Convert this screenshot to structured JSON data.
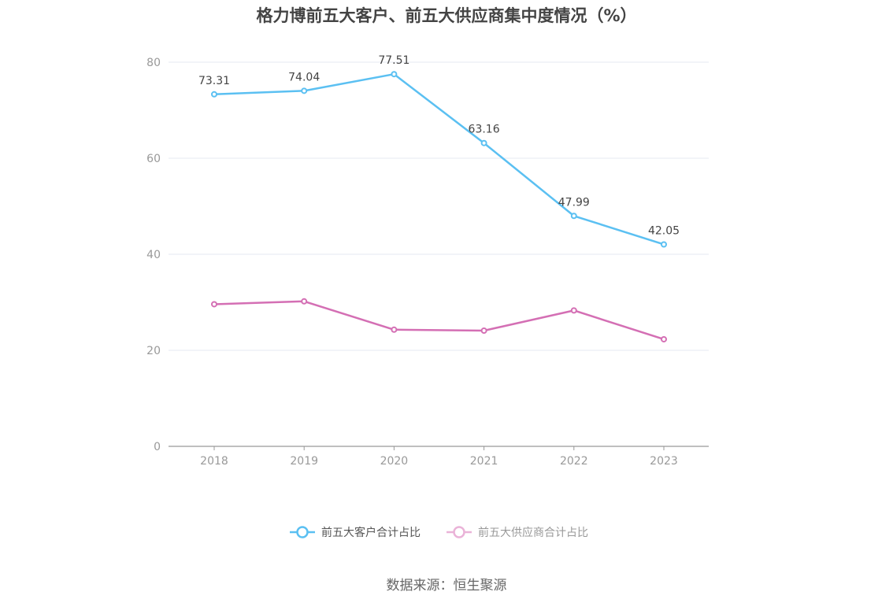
{
  "chart_data": {
    "type": "line",
    "title": "格力博前五大客户、前五大供应商集中度情况（%）",
    "categories": [
      "2018",
      "2019",
      "2020",
      "2021",
      "2022",
      "2023"
    ],
    "series": [
      {
        "name": "前五大客户合计占比",
        "values": [
          73.31,
          74.04,
          77.51,
          63.16,
          47.99,
          42.05
        ],
        "color": "#5bc0f2",
        "show_labels": true
      },
      {
        "name": "前五大供应商合计占比",
        "values": [
          29.6,
          30.2,
          24.3,
          24.1,
          28.3,
          22.3
        ],
        "color": "#d46fb4",
        "show_labels": false
      }
    ],
    "yticks": [
      0,
      20,
      40,
      60,
      80
    ],
    "ylim": [
      0,
      80
    ],
    "grid": true,
    "legend": "bottom-center",
    "legend_colors": [
      "#5bc0f2",
      "#eab3d8"
    ],
    "legend_text_colors": [
      "#555555",
      "#999999"
    ]
  },
  "source": "数据来源：恒生聚源"
}
